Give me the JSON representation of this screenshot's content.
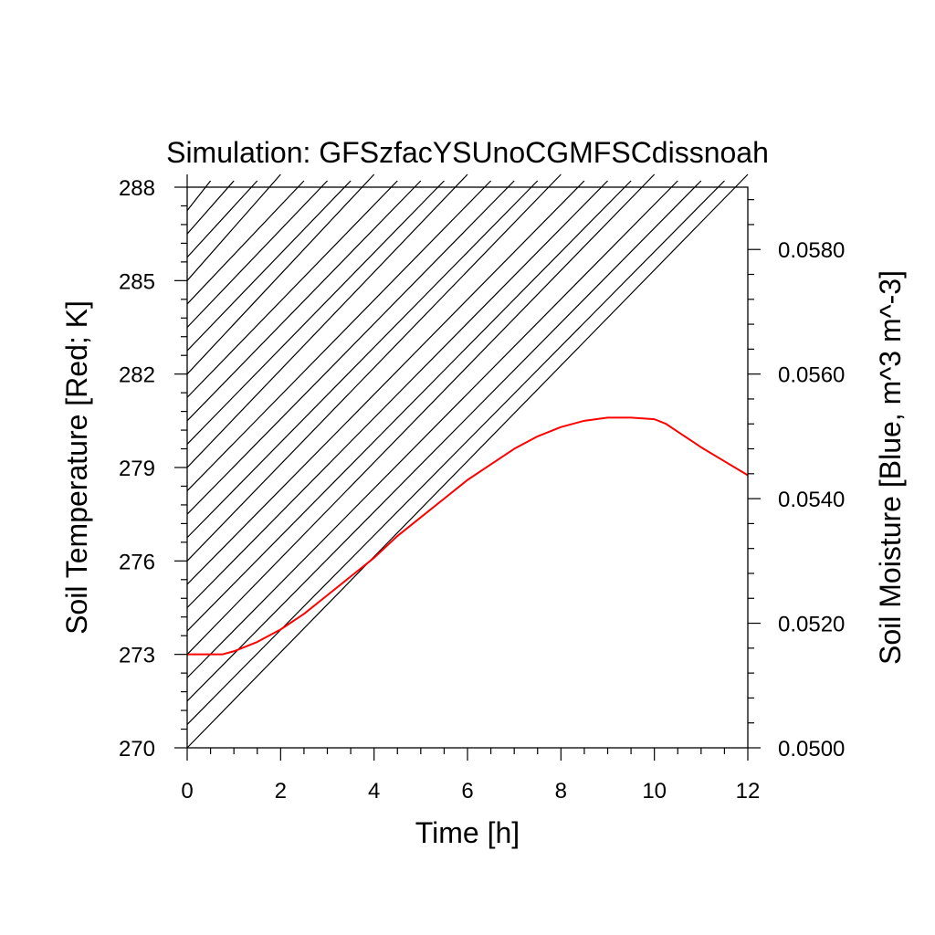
{
  "chart_data": {
    "type": "line",
    "title": "Simulation: GFSzfacYSUnoCGMFSCdissnoah",
    "xlabel": "Time [h]",
    "ylabel": "Soil Temperature [Red; K]",
    "y2label": "Soil Moisture [Blue, m^3 m^-3]",
    "xlim": [
      0,
      12
    ],
    "ylim": [
      270,
      288
    ],
    "y2lim": [
      0.05,
      0.059
    ],
    "x_ticks": [
      "0",
      "2",
      "4",
      "6",
      "8",
      "10",
      "12"
    ],
    "y_ticks": [
      "270",
      "273",
      "276",
      "279",
      "282",
      "285",
      "288"
    ],
    "y2_ticks": [
      "0.0500",
      "0.0520",
      "0.0540",
      "0.0560",
      "0.0580"
    ],
    "grid": false,
    "series": [
      {
        "axis": "left",
        "color": "#ff0000",
        "x": [
          0,
          0.5,
          0.75,
          1.0,
          1.5,
          2.0,
          2.5,
          3.0,
          3.5,
          4.0,
          4.5,
          5.0,
          5.5,
          6.0,
          6.5,
          7.0,
          7.5,
          8.0,
          8.5,
          9.0,
          9.5,
          10.0,
          10.25,
          10.5,
          11.0,
          11.5,
          12.0
        ],
        "values": [
          273.0,
          273.0,
          273.0,
          273.1,
          273.4,
          273.8,
          274.3,
          274.9,
          275.5,
          276.1,
          276.8,
          277.4,
          278.0,
          278.6,
          279.1,
          279.6,
          280.0,
          280.3,
          280.5,
          280.6,
          280.6,
          280.55,
          280.4,
          280.15,
          279.65,
          279.2,
          278.75
        ]
      }
    ]
  }
}
